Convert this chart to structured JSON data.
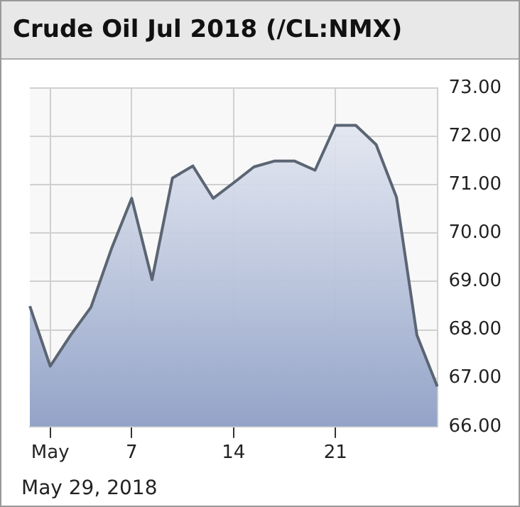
{
  "chart_data": {
    "type": "area",
    "title": "Crude Oil Jul 2018 (/CL:NMX)",
    "annotations": [
      "May 29, 2018"
    ],
    "categories": [
      null,
      "May",
      null,
      null,
      null,
      "7",
      null,
      null,
      null,
      null,
      "14",
      null,
      null,
      null,
      null,
      "21",
      null,
      null,
      null,
      null,
      null
    ],
    "series": [
      {
        "color": "#5b6573",
        "values": [
          68.49,
          67.25,
          67.89,
          68.47,
          69.67,
          70.72,
          69.04,
          71.14,
          71.39,
          70.72,
          71.04,
          71.37,
          71.49,
          71.49,
          71.3,
          72.23,
          72.23,
          71.83,
          70.74,
          67.89,
          66.83
        ]
      }
    ],
    "ylim": [
      66,
      73
    ],
    "yticks": [
      {
        "value": 66,
        "label": "66.00"
      },
      {
        "value": 67,
        "label": "67.00"
      },
      {
        "value": 68,
        "label": "68.00"
      },
      {
        "value": 69,
        "label": "69.00"
      },
      {
        "value": 70,
        "label": "70.00"
      },
      {
        "value": 71,
        "label": "71.00"
      },
      {
        "value": 72,
        "label": "72.00"
      },
      {
        "value": 73,
        "label": "73.00"
      }
    ],
    "grid": true,
    "legend": false
  }
}
